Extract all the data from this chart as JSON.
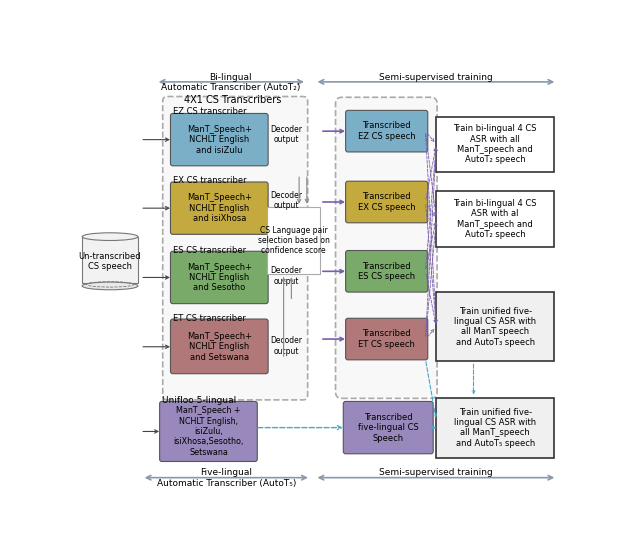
{
  "bg_color": "#ffffff",
  "top_arrow_label_left": "Bi-lingual\nAutomatic Transcriber (AutoT₂)",
  "top_arrow_label_right": "Semi-supervised training",
  "bottom_arrow_label_left": "Five-lingual\nAutomatic Transcriber (AutoT₅)",
  "bottom_arrow_label_right": "Semi-supervised training",
  "cylinder_label": "Un-transcribed\nCS speech",
  "transcribers_label": "4X1 CS Transcribers",
  "unified_label": "Unifloo 5-lingual",
  "cs_selection_label": "CS Language pair\nselection based on\nconfidence score",
  "ez_transcriber_label": "EZ CS transcriber",
  "ex_transcriber_label": "EX CS transcriber",
  "es_transcriber_label": "ES CS transcriber",
  "et_transcriber_label": "ET CS transcriber",
  "ez_model_label": "ManT_Speech+\nNCHLT English\nand isiZulu",
  "ex_model_label": "ManT_Speech+\nNCHLT English\nand isiXhosa",
  "es_model_label": "ManT_Speech+\nNCHLT English\nand Sesotho",
  "et_model_label": "ManT_Speech+\nNCHLT English\nand Setswana",
  "five_model_label": "ManT_Speech +\nNCHLT English,\nisiZulu,\nisiXhosa,Sesotho,\nSetswana",
  "ez_decoder_label": "Decoder\noutput",
  "ex_decoder_label": "Decoder\noutput",
  "es_decoder_label": "Decoder\noutput",
  "et_decoder_label": "Decoder\noutput",
  "transcribed_ez_label": "Transcribed\nEZ CS speech",
  "transcribed_ex_label": "Transcribed\nEX CS speech",
  "transcribed_es_label": "Transcribed\nES CS speech",
  "transcribed_et_label": "Transcribed\nET CS speech",
  "transcribed_five_label": "Transcribed\nfive-lingual CS\nSpeech",
  "train_ez_label": "Train bi-lingual 4 CS\nASR with all\nManT_speech and\nAutoT₂ speech",
  "train_ex_label": "Train bi-lingual 4 CS\nASR with al\nManT_speech and\nAutoT₂ speech",
  "train_unified_label": "Train unified five-\nlingual CS ASR with\nall ManT speech\nand AutoT₃ speech",
  "train_five_label": "Train unified five-\nlingual CS ASR with\nall ManT_speech\nand AutoT₅ speech",
  "ez_color": "#7bafc8",
  "ex_color": "#c4a93e",
  "es_color": "#7aaa6a",
  "et_color": "#b07878",
  "five_color": "#9988bb",
  "transcribed_ez_color": "#7bafc8",
  "transcribed_ex_color": "#c4a93e",
  "transcribed_es_color": "#7aaa6a",
  "transcribed_et_color": "#b07878",
  "transcribed_five_color": "#9988bb",
  "arrow_color_gray": "#8899aa",
  "arrow_color_purple": "#7b5fac",
  "arrow_color_cyan": "#44aacc"
}
